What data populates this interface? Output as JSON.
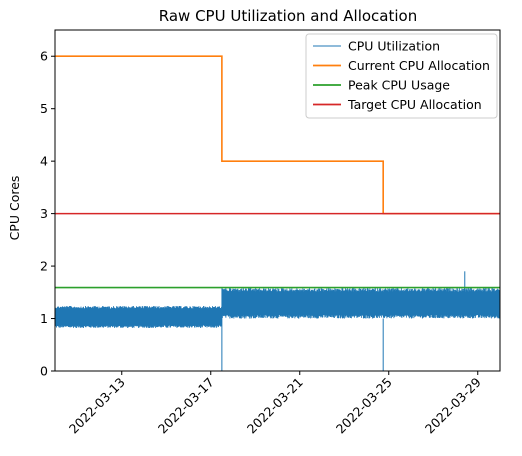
{
  "chart_data": {
    "type": "line",
    "title": "Raw CPU Utilization and Allocation",
    "xlabel": "",
    "ylabel": "CPU Cores",
    "x_type": "date",
    "xlim": [
      "2022-03-10",
      "2022-03-30"
    ],
    "ylim": [
      0,
      6.5
    ],
    "x_ticks": [
      "2022-03-13",
      "2022-03-17",
      "2022-03-21",
      "2022-03-25",
      "2022-03-29"
    ],
    "y_ticks": [
      0,
      1,
      2,
      3,
      4,
      5,
      6
    ],
    "grid": false,
    "legend_position": "top-right",
    "series": [
      {
        "name": "CPU Utilization",
        "color": "#1f77b4",
        "style": "noisy-band",
        "segments": [
          {
            "start": "2022-03-10",
            "end": "2022-03-17 12:00",
            "low": 0.82,
            "high": 1.24
          },
          {
            "start": "2022-03-17 12:00",
            "end": "2022-03-30",
            "low": 1.0,
            "high": 1.58
          }
        ],
        "spikes": [
          {
            "x": "2022-03-17 12:00",
            "y": 0.0
          },
          {
            "x": "2022-03-24 18:00",
            "y": 0.0
          },
          {
            "x": "2022-03-28 10:00",
            "y": 1.9
          }
        ]
      },
      {
        "name": "Current CPU Allocation",
        "color": "#ff7f0e",
        "style": "step",
        "x": [
          "2022-03-10",
          "2022-03-17 12:00",
          "2022-03-17 12:00",
          "2022-03-24 18:00",
          "2022-03-24 18:00",
          "2022-03-30"
        ],
        "y": [
          6,
          6,
          4,
          4,
          3,
          3
        ]
      },
      {
        "name": "Peak CPU Usage",
        "color": "#2ca02c",
        "style": "line",
        "x": [
          "2022-03-10",
          "2022-03-30"
        ],
        "y": [
          1.59,
          1.59
        ]
      },
      {
        "name": "Target CPU Allocation",
        "color": "#d62728",
        "style": "line",
        "x": [
          "2022-03-10",
          "2022-03-30"
        ],
        "y": [
          3,
          3
        ]
      }
    ]
  }
}
